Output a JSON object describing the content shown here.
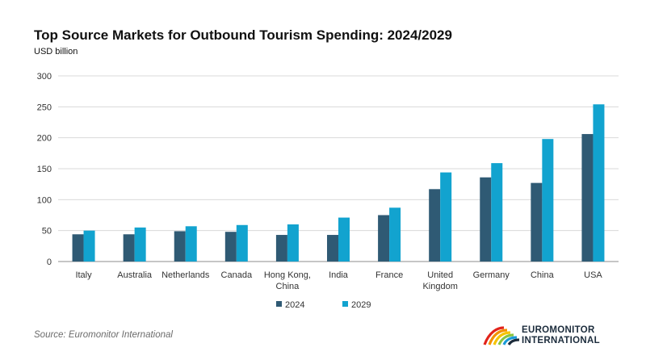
{
  "chart_data": {
    "type": "bar",
    "title": "Top Source Markets for Outbound Tourism Spending: 2024/2029",
    "subtitle": "USD billion",
    "categories": [
      "Italy",
      "Australia",
      "Netherlands",
      "Canada",
      "Hong Kong, China",
      "India",
      "France",
      "United Kingdom",
      "Germany",
      "China",
      "USA"
    ],
    "category_lines": [
      [
        "Italy"
      ],
      [
        "Australia"
      ],
      [
        "Netherlands"
      ],
      [
        "Canada"
      ],
      [
        "Hong Kong,",
        "China"
      ],
      [
        "India"
      ],
      [
        "France"
      ],
      [
        "United",
        "Kingdom"
      ],
      [
        "Germany"
      ],
      [
        "China"
      ],
      [
        "USA"
      ]
    ],
    "series": [
      {
        "name": "2024",
        "color": "#2f5a74",
        "values": [
          44,
          44,
          49,
          48,
          43,
          43,
          75,
          117,
          136,
          127,
          206
        ]
      },
      {
        "name": "2029",
        "color": "#12a3cf",
        "values": [
          50,
          55,
          57,
          59,
          60,
          71,
          87,
          144,
          159,
          198,
          254
        ]
      }
    ],
    "yticks": [
      0,
      50,
      100,
      150,
      200,
      250,
      300
    ],
    "ylim": [
      0,
      300
    ],
    "grid": true,
    "legend": "bottom-center"
  },
  "footer": {
    "source": "Source: Euromonitor International",
    "logo_line1": "EUROMONITOR",
    "logo_line2": "INTERNATIONAL"
  }
}
